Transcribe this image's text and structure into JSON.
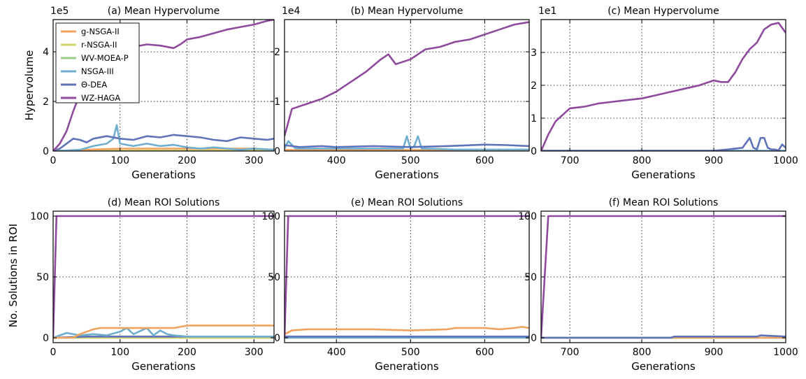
{
  "figure": {
    "ylabel_top": "Hypervolume",
    "ylabel_bottom": "No. Solutions in ROI"
  },
  "legend": {
    "location": "top-left of panel (a)",
    "entries": [
      {
        "name": "g-NSGA-II",
        "color": "#f0a35e"
      },
      {
        "name": "r-NSGA-II",
        "color": "#cfd06a"
      },
      {
        "name": "WV-MOEA-P",
        "color": "#9cc98a"
      },
      {
        "name": "NSGA-III",
        "color": "#70aed0"
      },
      {
        "name": "Θ-DEA",
        "color": "#6073b8"
      },
      {
        "name": "WZ-HAGA",
        "color": "#8e4a9c"
      }
    ]
  },
  "chart_data": [
    {
      "type": "line",
      "title": "(a) Mean Hypervolume",
      "xlabel": "Generations",
      "ylabel": "Hypervolume",
      "exponent_label": "1e5",
      "xlim": [
        0,
        330
      ],
      "ylim": [
        0,
        5.3
      ],
      "xticks": [
        0,
        100,
        200,
        300
      ],
      "yticks": [
        0,
        2,
        4
      ],
      "grid": true,
      "series": [
        {
          "name": "WZ-HAGA",
          "color": "#8e4a9c",
          "x": [
            0,
            10,
            20,
            30,
            40,
            50,
            60,
            80,
            100,
            120,
            140,
            160,
            180,
            190,
            200,
            220,
            240,
            260,
            280,
            300,
            320,
            330
          ],
          "y": [
            0,
            0.3,
            0.8,
            1.6,
            2.3,
            2.8,
            3.1,
            3.5,
            3.9,
            4.2,
            4.3,
            4.25,
            4.15,
            4.3,
            4.5,
            4.6,
            4.75,
            4.9,
            5.0,
            5.1,
            5.25,
            5.3
          ]
        },
        {
          "name": "Θ-DEA",
          "color": "#6073b8",
          "x": [
            0,
            10,
            20,
            30,
            40,
            50,
            60,
            80,
            100,
            120,
            140,
            160,
            180,
            200,
            220,
            240,
            260,
            280,
            300,
            320,
            330
          ],
          "y": [
            0,
            0.1,
            0.3,
            0.5,
            0.45,
            0.35,
            0.5,
            0.6,
            0.5,
            0.45,
            0.6,
            0.55,
            0.65,
            0.6,
            0.55,
            0.45,
            0.4,
            0.55,
            0.5,
            0.45,
            0.5
          ]
        },
        {
          "name": "NSGA-III",
          "color": "#70aed0",
          "x": [
            0,
            40,
            60,
            80,
            90,
            95,
            100,
            120,
            140,
            160,
            180,
            200,
            220,
            240,
            260,
            280,
            300,
            330
          ],
          "y": [
            0,
            0.05,
            0.2,
            0.3,
            0.5,
            1.05,
            0.3,
            0.2,
            0.3,
            0.2,
            0.25,
            0.15,
            0.1,
            0.15,
            0.1,
            0.05,
            0.1,
            0.05
          ]
        },
        {
          "name": "g-NSGA-II",
          "color": "#f0a35e",
          "x": [
            0,
            50,
            100,
            150,
            200,
            250,
            300,
            330
          ],
          "y": [
            0,
            0.05,
            0.1,
            0.1,
            0.1,
            0.1,
            0.1,
            0.05
          ]
        },
        {
          "name": "r-NSGA-II",
          "color": "#cfd06a",
          "x": [
            0,
            330
          ],
          "y": [
            0.02,
            0.02
          ]
        },
        {
          "name": "WV-MOEA-P",
          "color": "#9cc98a",
          "x": [
            0,
            330
          ],
          "y": [
            0.01,
            0.01
          ]
        }
      ]
    },
    {
      "type": "line",
      "title": "(b) Mean Hypervolume",
      "xlabel": "Generations",
      "ylabel": "",
      "exponent_label": "1e4",
      "xlim": [
        330,
        660
      ],
      "ylim": [
        0,
        2.65
      ],
      "xticks": [
        400,
        500,
        600
      ],
      "yticks": [
        0,
        1,
        2
      ],
      "grid": true,
      "series": [
        {
          "name": "WZ-HAGA",
          "color": "#8e4a9c",
          "x": [
            330,
            340,
            360,
            380,
            400,
            420,
            440,
            460,
            470,
            480,
            500,
            520,
            540,
            560,
            580,
            600,
            620,
            640,
            660
          ],
          "y": [
            0.3,
            0.85,
            0.95,
            1.05,
            1.2,
            1.4,
            1.6,
            1.85,
            1.95,
            1.75,
            1.85,
            2.05,
            2.1,
            2.2,
            2.25,
            2.35,
            2.45,
            2.55,
            2.6
          ]
        },
        {
          "name": "Θ-DEA",
          "color": "#6073b8",
          "x": [
            330,
            350,
            380,
            400,
            450,
            500,
            550,
            600,
            630,
            660
          ],
          "y": [
            0.12,
            0.08,
            0.1,
            0.08,
            0.1,
            0.08,
            0.1,
            0.13,
            0.12,
            0.1
          ]
        },
        {
          "name": "NSGA-III",
          "color": "#70aed0",
          "x": [
            330,
            335,
            345,
            400,
            490,
            495,
            500,
            505,
            510,
            515,
            520,
            560,
            660
          ],
          "y": [
            0.05,
            0.2,
            0.05,
            0.05,
            0.05,
            0.3,
            0.05,
            0.1,
            0.3,
            0.05,
            0.05,
            0.03,
            0.03
          ]
        },
        {
          "name": "g-NSGA-II",
          "color": "#f0a35e",
          "x": [
            330,
            660
          ],
          "y": [
            0.02,
            0.02
          ]
        },
        {
          "name": "r-NSGA-II",
          "color": "#cfd06a",
          "x": [
            330,
            660
          ],
          "y": [
            0.01,
            0.01
          ]
        },
        {
          "name": "WV-MOEA-P",
          "color": "#9cc98a",
          "x": [
            330,
            660
          ],
          "y": [
            0.01,
            0.01
          ]
        }
      ]
    },
    {
      "type": "line",
      "title": "(c) Mean Hypervolume",
      "xlabel": "Generations",
      "ylabel": "",
      "exponent_label": "1e1",
      "xlim": [
        660,
        1000
      ],
      "ylim": [
        0,
        4.0
      ],
      "xticks": [
        700,
        800,
        900,
        1000
      ],
      "yticks": [
        0,
        1,
        2,
        3
      ],
      "grid": true,
      "series": [
        {
          "name": "WZ-HAGA",
          "color": "#8e4a9c",
          "x": [
            660,
            670,
            680,
            690,
            700,
            720,
            740,
            760,
            780,
            800,
            820,
            840,
            860,
            880,
            900,
            910,
            920,
            930,
            940,
            950,
            960,
            970,
            980,
            990,
            1000
          ],
          "y": [
            0,
            0.5,
            0.9,
            1.1,
            1.3,
            1.35,
            1.45,
            1.5,
            1.55,
            1.6,
            1.7,
            1.8,
            1.9,
            2.0,
            2.15,
            2.1,
            2.1,
            2.4,
            2.8,
            3.1,
            3.3,
            3.7,
            3.85,
            3.9,
            3.6
          ]
        },
        {
          "name": "Θ-DEA",
          "color": "#6073b8",
          "x": [
            660,
            900,
            920,
            940,
            950,
            955,
            960,
            965,
            970,
            975,
            980,
            985,
            990,
            995,
            1000
          ],
          "y": [
            0.01,
            0.01,
            0.05,
            0.1,
            0.4,
            0.1,
            0.05,
            0.4,
            0.4,
            0.1,
            0.05,
            0.05,
            0.02,
            0.2,
            0.1
          ]
        },
        {
          "name": "NSGA-III",
          "color": "#70aed0",
          "x": [
            660,
            1000
          ],
          "y": [
            0.01,
            0.01
          ]
        },
        {
          "name": "g-NSGA-II",
          "color": "#f0a35e",
          "x": [
            660,
            1000
          ],
          "y": [
            0.005,
            0.005
          ]
        },
        {
          "name": "r-NSGA-II",
          "color": "#cfd06a",
          "x": [
            660,
            1000
          ],
          "y": [
            0.005,
            0.005
          ]
        },
        {
          "name": "WV-MOEA-P",
          "color": "#9cc98a",
          "x": [
            660,
            1000
          ],
          "y": [
            0.005,
            0.005
          ]
        }
      ]
    },
    {
      "type": "line",
      "title": "(d) Mean ROI Solutions",
      "xlabel": "Generations",
      "ylabel": "No. Solutions in ROI",
      "exponent_label": "",
      "xlim": [
        0,
        330
      ],
      "ylim": [
        -4,
        104
      ],
      "xticks": [
        0,
        100,
        200,
        300
      ],
      "yticks": [
        0,
        50,
        100
      ],
      "grid": true,
      "series": [
        {
          "name": "WZ-HAGA",
          "color": "#8e4a9c",
          "x": [
            0,
            5,
            330
          ],
          "y": [
            0,
            100,
            100
          ]
        },
        {
          "name": "g-NSGA-II",
          "color": "#f0a35e",
          "x": [
            0,
            30,
            40,
            50,
            60,
            70,
            100,
            150,
            180,
            190,
            200,
            250,
            330
          ],
          "y": [
            0,
            0,
            3,
            5,
            7,
            8,
            8,
            8,
            8,
            9,
            10,
            10,
            10
          ]
        },
        {
          "name": "NSGA-III",
          "color": "#70aed0",
          "x": [
            0,
            10,
            20,
            30,
            40,
            60,
            80,
            100,
            110,
            120,
            140,
            150,
            160,
            170,
            180,
            200,
            250,
            330
          ],
          "y": [
            0,
            2,
            4,
            3,
            2,
            3,
            2,
            5,
            8,
            3,
            8,
            2,
            6,
            3,
            2,
            1,
            1,
            1
          ]
        },
        {
          "name": "Θ-DEA",
          "color": "#6073b8",
          "x": [
            0,
            50,
            100,
            150,
            200,
            250,
            330
          ],
          "y": [
            0,
            1,
            1,
            1,
            1,
            1,
            1
          ]
        },
        {
          "name": "r-NSGA-II",
          "color": "#cfd06a",
          "x": [
            0,
            330
          ],
          "y": [
            0,
            0
          ]
        },
        {
          "name": "WV-MOEA-P",
          "color": "#9cc98a",
          "x": [
            0,
            330
          ],
          "y": [
            0,
            0
          ]
        }
      ]
    },
    {
      "type": "line",
      "title": "(e) Mean ROI Solutions",
      "xlabel": "Generations",
      "ylabel": "",
      "exponent_label": "",
      "xlim": [
        330,
        660
      ],
      "ylim": [
        -4,
        104
      ],
      "xticks": [
        400,
        500,
        600
      ],
      "yticks": [
        0,
        50,
        100
      ],
      "grid": true,
      "series": [
        {
          "name": "WZ-HAGA",
          "color": "#8e4a9c",
          "x": [
            330,
            335,
            660
          ],
          "y": [
            0,
            100,
            100
          ]
        },
        {
          "name": "g-NSGA-II",
          "color": "#f0a35e",
          "x": [
            330,
            340,
            360,
            380,
            400,
            450,
            500,
            550,
            560,
            600,
            620,
            640,
            650,
            660
          ],
          "y": [
            3,
            6,
            7,
            7,
            7,
            7,
            6,
            7,
            8,
            8,
            7,
            8,
            9,
            8
          ]
        },
        {
          "name": "Θ-DEA",
          "color": "#6073b8",
          "x": [
            330,
            400,
            500,
            600,
            660
          ],
          "y": [
            1,
            1,
            1,
            1,
            1
          ]
        },
        {
          "name": "NSGA-III",
          "color": "#70aed0",
          "x": [
            330,
            660
          ],
          "y": [
            0,
            0
          ]
        },
        {
          "name": "r-NSGA-II",
          "color": "#cfd06a",
          "x": [
            330,
            660
          ],
          "y": [
            0,
            0
          ]
        },
        {
          "name": "WV-MOEA-P",
          "color": "#9cc98a",
          "x": [
            330,
            660
          ],
          "y": [
            0,
            0
          ]
        }
      ]
    },
    {
      "type": "line",
      "title": "(f) Mean ROI Solutions",
      "xlabel": "Generations",
      "ylabel": "",
      "exponent_label": "",
      "xlim": [
        660,
        1000
      ],
      "ylim": [
        -4,
        104
      ],
      "xticks": [
        700,
        800,
        900,
        1000
      ],
      "yticks": [
        0,
        50,
        100
      ],
      "grid": true,
      "series": [
        {
          "name": "WZ-HAGA",
          "color": "#8e4a9c",
          "x": [
            660,
            670,
            1000
          ],
          "y": [
            0,
            100,
            100
          ]
        },
        {
          "name": "Θ-DEA",
          "color": "#6073b8",
          "x": [
            660,
            840,
            845,
            960,
            965,
            1000
          ],
          "y": [
            0,
            0,
            1,
            1,
            2,
            1
          ]
        },
        {
          "name": "g-NSGA-II",
          "color": "#f0a35e",
          "x": [
            660,
            1000
          ],
          "y": [
            0,
            0
          ]
        },
        {
          "name": "NSGA-III",
          "color": "#70aed0",
          "x": [
            660,
            1000
          ],
          "y": [
            0,
            0
          ]
        },
        {
          "name": "r-NSGA-II",
          "color": "#cfd06a",
          "x": [
            660,
            1000
          ],
          "y": [
            0,
            0
          ]
        },
        {
          "name": "WV-MOEA-P",
          "color": "#9cc98a",
          "x": [
            660,
            1000
          ],
          "y": [
            0,
            0
          ]
        }
      ]
    }
  ]
}
